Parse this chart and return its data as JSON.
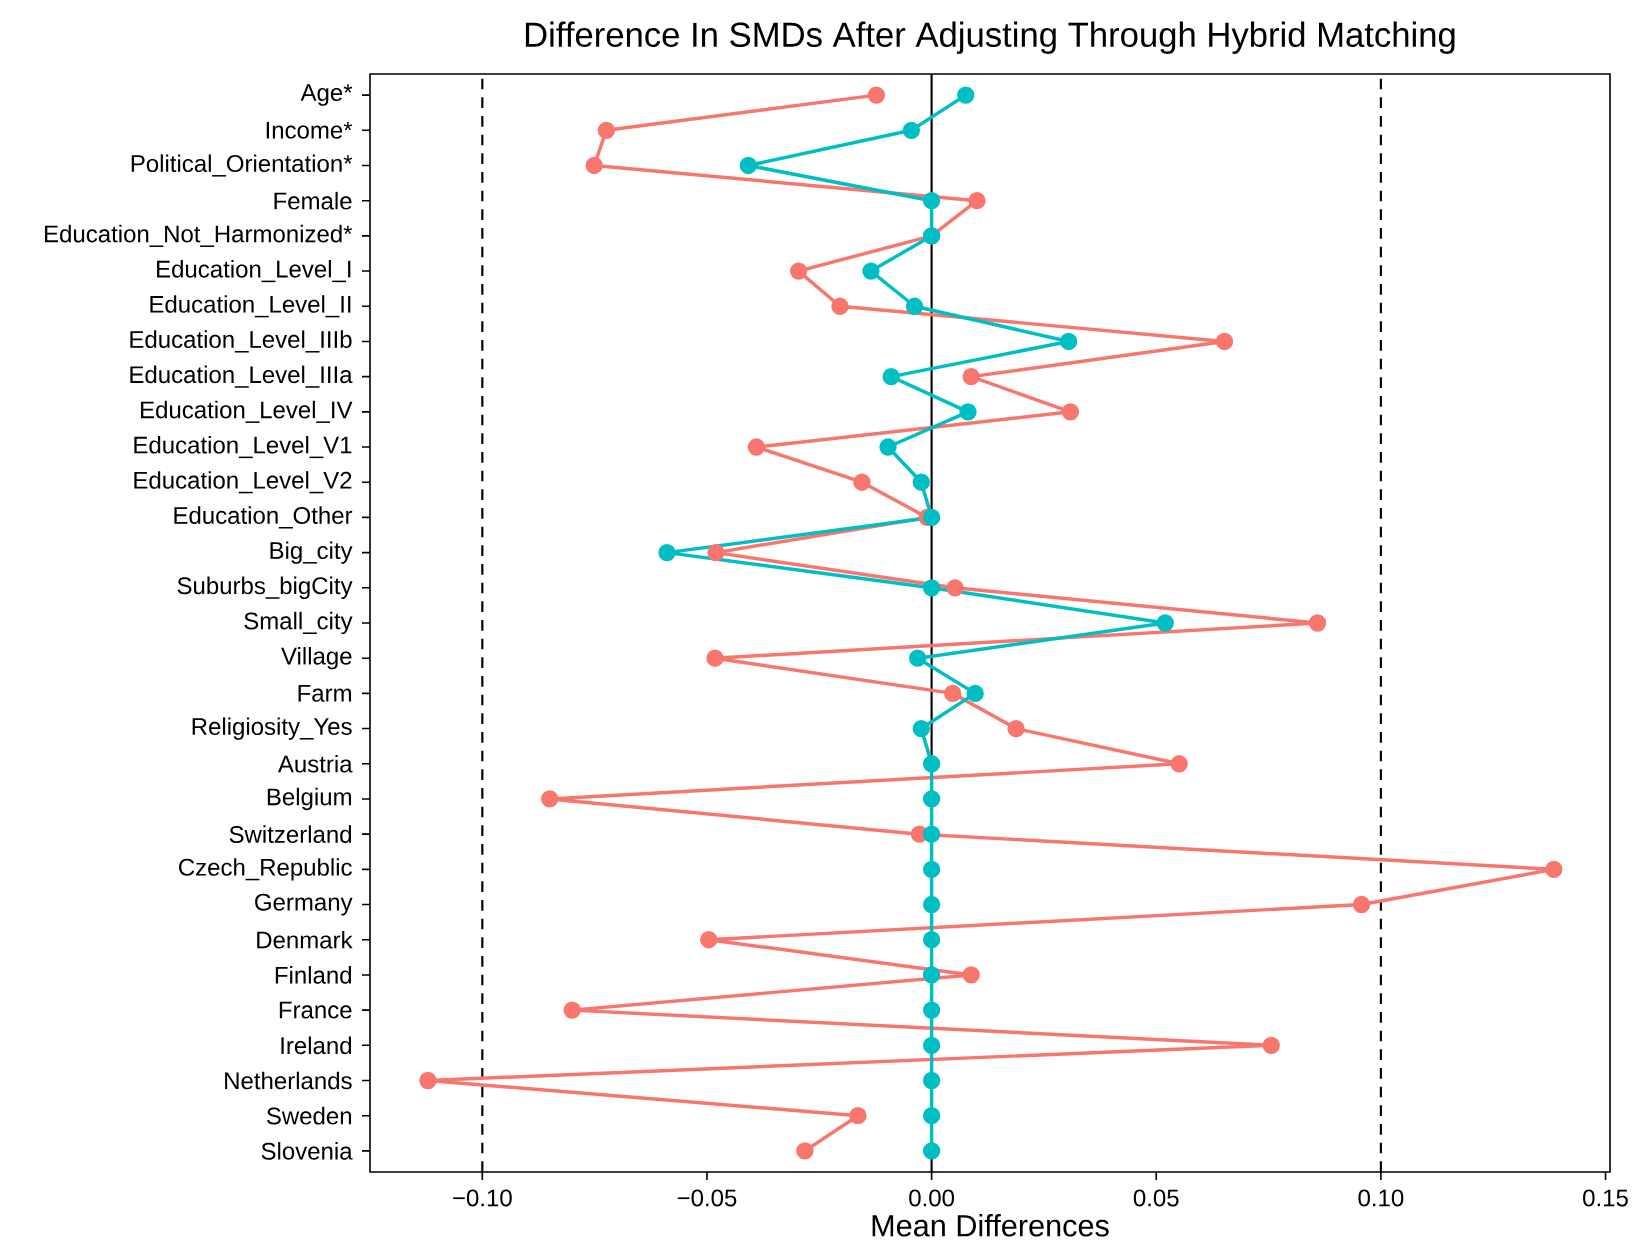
{
  "chart_data": {
    "type": "line",
    "title": "Difference In SMDs After Adjusting Through Hybrid Matching",
    "xlabel": "Mean Differences",
    "orientation": "horizontal",
    "categories": [
      "Age*",
      "Income*",
      "Political_Orientation*",
      "Female",
      "Education_Not_Harmonized*",
      "Education_Level_I",
      "Education_Level_II",
      "Education_Level_IIIb",
      "Education_Level_IIIa",
      "Education_Level_IV",
      "Education_Level_V1",
      "Education_Level_V2",
      "Education_Other",
      "Big_city",
      "Suburbs_bigCity",
      "Small_city",
      "Village",
      "Farm",
      "Religiosity_Yes",
      "Austria",
      "Belgium",
      "Switzerland",
      "Czech_Republic",
      "Germany",
      "Denmark",
      "Finland",
      "France",
      "Ireland",
      "Netherlands",
      "Sweden",
      "Slovenia"
    ],
    "series": [
      {
        "color": "#f8766d",
        "values": [
          -0.0123,
          -0.0724,
          -0.0751,
          0.0101,
          0.0,
          -0.0296,
          -0.0204,
          0.0652,
          0.0088,
          0.0309,
          -0.039,
          -0.0155,
          -0.001,
          -0.048,
          0.0052,
          0.0859,
          -0.0482,
          0.0047,
          0.0188,
          0.0551,
          -0.085,
          -0.0027,
          0.1385,
          0.0957,
          -0.0496,
          0.0088,
          -0.08,
          0.0756,
          -0.1121,
          -0.0164,
          -0.0282
        ]
      },
      {
        "color": "#00bfc4",
        "values": [
          0.0076,
          -0.0045,
          -0.0408,
          0.0,
          0.0,
          -0.0135,
          -0.0038,
          0.0305,
          -0.009,
          0.0081,
          -0.0097,
          -0.0023,
          0.0,
          -0.0589,
          0.0,
          0.052,
          -0.0031,
          0.0097,
          -0.0023,
          0.0,
          0.0,
          0.0,
          0.0,
          0.0,
          0.0,
          0.0,
          0.0,
          0.0,
          0.0,
          0.0,
          0.0
        ]
      }
    ],
    "xlim": [
      -0.125,
      0.151
    ],
    "xticks": [
      {
        "value": -0.1,
        "label": "−0.10"
      },
      {
        "value": -0.05,
        "label": "−0.05"
      },
      {
        "value": 0,
        "label": "0.00"
      },
      {
        "value": 0.05,
        "label": "0.05"
      },
      {
        "value": 0.1,
        "label": "0.10"
      },
      {
        "value": 0.15,
        "label": "0.15"
      }
    ],
    "ref_lines": [
      {
        "axis": "x",
        "value": -0.1,
        "line_style": "dashed",
        "color": "#000000"
      },
      {
        "axis": "x",
        "value": 0,
        "line_style": "solid",
        "color": "#000000"
      },
      {
        "axis": "x",
        "value": 0.1,
        "line_style": "dashed",
        "color": "#000000"
      }
    ],
    "marker": "circle",
    "line_style": "solid"
  }
}
